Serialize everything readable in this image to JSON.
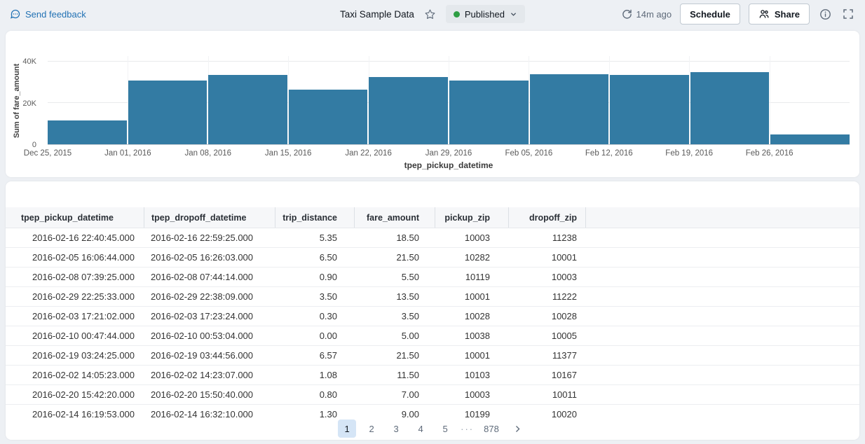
{
  "topbar": {
    "feedback_label": "Send feedback",
    "title": "Taxi Sample Data",
    "status_label": "Published",
    "refreshed_label": "14m ago",
    "schedule_label": "Schedule",
    "share_label": "Share"
  },
  "colors": {
    "accent_blue": "#2272B4",
    "bar_color": "#337BA3",
    "published_green": "#2E9E44",
    "page_background": "#EDF0F4",
    "active_page_background": "#D5E5F6"
  },
  "chart_data": {
    "type": "bar",
    "title": "",
    "xlabel": "tpep_pickup_datetime",
    "ylabel": "Sum of fare_amount",
    "categories": [
      "Dec 25, 2015",
      "Jan 01, 2016",
      "Jan 08, 2016",
      "Jan 15, 2016",
      "Jan 22, 2016",
      "Jan 29, 2016",
      "Feb 05, 2016",
      "Feb 12, 2016",
      "Feb 19, 2016",
      "Feb 26, 2016"
    ],
    "values": [
      11400,
      30700,
      33700,
      26300,
      32400,
      30700,
      33900,
      33400,
      34900,
      4700
    ],
    "ylim": [
      0,
      42700
    ],
    "yticks": [
      {
        "value": 0,
        "label": "0"
      },
      {
        "value": 20000,
        "label": "20K"
      },
      {
        "value": 40000,
        "label": "40K"
      }
    ],
    "grid": true,
    "legend_position": "none"
  },
  "table": {
    "columns": [
      {
        "label": "tpep_pickup_datetime"
      },
      {
        "label": "tpep_dropoff_datetime"
      },
      {
        "label": "trip_distance"
      },
      {
        "label": "fare_amount"
      },
      {
        "label": "pickup_zip"
      },
      {
        "label": "dropoff_zip"
      }
    ],
    "rows": [
      [
        "2016-02-16 22:40:45.000",
        "2016-02-16 22:59:25.000",
        "5.35",
        "18.50",
        "10003",
        "11238"
      ],
      [
        "2016-02-05 16:06:44.000",
        "2016-02-05 16:26:03.000",
        "6.50",
        "21.50",
        "10282",
        "10001"
      ],
      [
        "2016-02-08 07:39:25.000",
        "2016-02-08 07:44:14.000",
        "0.90",
        "5.50",
        "10119",
        "10003"
      ],
      [
        "2016-02-29 22:25:33.000",
        "2016-02-29 22:38:09.000",
        "3.50",
        "13.50",
        "10001",
        "11222"
      ],
      [
        "2016-02-03 17:21:02.000",
        "2016-02-03 17:23:24.000",
        "0.30",
        "3.50",
        "10028",
        "10028"
      ],
      [
        "2016-02-10 00:47:44.000",
        "2016-02-10 00:53:04.000",
        "0.00",
        "5.00",
        "10038",
        "10005"
      ],
      [
        "2016-02-19 03:24:25.000",
        "2016-02-19 03:44:56.000",
        "6.57",
        "21.50",
        "10001",
        "11377"
      ],
      [
        "2016-02-02 14:05:23.000",
        "2016-02-02 14:23:07.000",
        "1.08",
        "11.50",
        "10103",
        "10167"
      ],
      [
        "2016-02-20 15:42:20.000",
        "2016-02-20 15:50:40.000",
        "0.80",
        "7.00",
        "10003",
        "10011"
      ],
      [
        "2016-02-14 16:19:53.000",
        "2016-02-14 16:32:10.000",
        "1.30",
        "9.00",
        "10199",
        "10020"
      ]
    ]
  },
  "pagination": {
    "pages": [
      "1",
      "2",
      "3",
      "4",
      "5"
    ],
    "active_page": "1",
    "ellipsis": "···",
    "last_page": "878"
  }
}
